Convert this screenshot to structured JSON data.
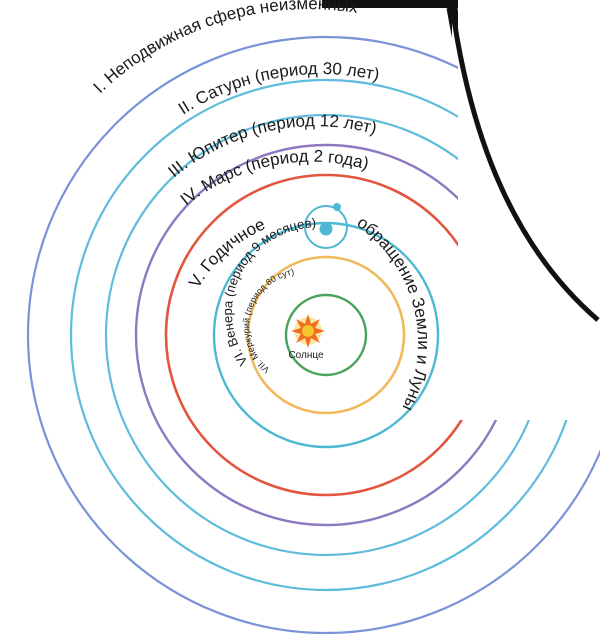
{
  "diagram": {
    "center_label": "Солнце",
    "orbits": [
      {
        "id": "fixed-stars",
        "label": "I. Неподвижная сфера неизменных",
        "color": "#7a93d8"
      },
      {
        "id": "saturn",
        "label": "II. Сатурн (период 30 лет)",
        "color": "#5fbcdc"
      },
      {
        "id": "jupiter",
        "label": "III. Юпитер (период 12 лет)",
        "color": "#5fbcdc"
      },
      {
        "id": "mars",
        "label": "IV. Марс (период 2 года)",
        "color": "#8d79c2"
      },
      {
        "id": "earth",
        "label": "V. Годичное обращение Земли и Луны",
        "color": "#e2553f"
      },
      {
        "id": "venus",
        "label": "VI. Венера (период 9 месяцев)",
        "color": "#4db8d2"
      },
      {
        "id": "mercury",
        "label": "VII. Меркурий (период 80 сут)",
        "color": "#f0b95c"
      }
    ],
    "sun_orbit_color": "#4aa35a",
    "sun_color": "#f26a1b",
    "earth_color": "#4db8d2",
    "moon_orbit_color": "#4db8d2"
  }
}
